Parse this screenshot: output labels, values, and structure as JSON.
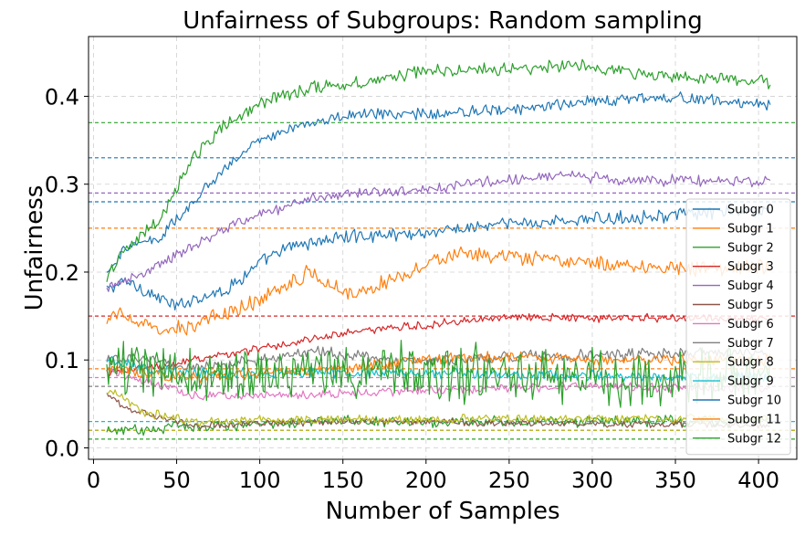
{
  "chart_data": {
    "type": "line",
    "title": "Unfairness of Subgroups: Random sampling",
    "xlabel": "Number of Samples",
    "ylabel": "Unfairness",
    "xlim": [
      -3,
      423
    ],
    "ylim": [
      -0.013,
      0.468
    ],
    "xticks": [
      "0",
      "50",
      "100",
      "150",
      "200",
      "250",
      "300",
      "350",
      "400"
    ],
    "xtick_values": [
      0,
      50,
      100,
      150,
      200,
      250,
      300,
      350,
      400
    ],
    "yticks": [
      "0.0",
      "0.1",
      "0.2",
      "0.3",
      "0.4"
    ],
    "ytick_values": [
      0.0,
      0.1,
      0.2,
      0.3,
      0.4
    ],
    "grid": true,
    "legend_position": "lower-right",
    "x_start": 8,
    "x_end": 407,
    "series": [
      {
        "name": "Subgr 0",
        "color": "#1f77b4",
        "noise": 0.006,
        "x": [
          8,
          20,
          50,
          60,
          80,
          100,
          120,
          150,
          200,
          250,
          300,
          350,
          407
        ],
        "y": [
          0.18,
          0.19,
          0.16,
          0.17,
          0.18,
          0.21,
          0.23,
          0.24,
          0.245,
          0.255,
          0.26,
          0.265,
          0.27
        ],
        "ref": 0.28
      },
      {
        "name": "Subgr 1",
        "color": "#ff7f0e",
        "noise": 0.007,
        "x": [
          8,
          15,
          40,
          60,
          90,
          130,
          150,
          160,
          200,
          220,
          260,
          300,
          350,
          407
        ],
        "y": [
          0.14,
          0.155,
          0.13,
          0.14,
          0.16,
          0.2,
          0.18,
          0.175,
          0.21,
          0.22,
          0.215,
          0.21,
          0.205,
          0.205
        ],
        "ref": 0.25
      },
      {
        "name": "Subgr 2",
        "color": "#2ca02c",
        "noise": 0.005,
        "x": [
          8,
          10,
          30,
          50,
          70,
          100,
          130,
          160,
          200,
          250,
          300,
          350,
          407
        ],
        "y": [
          0.015,
          0.02,
          0.02,
          0.025,
          0.025,
          0.028,
          0.03,
          0.03,
          0.03,
          0.03,
          0.03,
          0.03,
          0.03
        ],
        "ref": 0.01
      },
      {
        "name": "Subgr 3",
        "color": "#d62728",
        "noise": 0.004,
        "x": [
          8,
          30,
          60,
          90,
          120,
          150,
          200,
          250,
          300,
          350,
          407
        ],
        "y": [
          0.085,
          0.09,
          0.1,
          0.11,
          0.12,
          0.13,
          0.14,
          0.15,
          0.148,
          0.147,
          0.146
        ],
        "ref": 0.15
      },
      {
        "name": "Subgr 4",
        "color": "#9467bd",
        "noise": 0.005,
        "x": [
          8,
          20,
          40,
          60,
          80,
          100,
          130,
          160,
          200,
          250,
          280,
          320,
          407
        ],
        "y": [
          0.18,
          0.19,
          0.21,
          0.23,
          0.25,
          0.265,
          0.285,
          0.29,
          0.295,
          0.305,
          0.31,
          0.305,
          0.303
        ],
        "ref": 0.29
      },
      {
        "name": "Subgr 5",
        "color": "#8c564b",
        "noise": 0.003,
        "x": [
          8,
          20,
          40,
          60,
          100,
          150,
          200,
          250,
          300,
          350,
          407
        ],
        "y": [
          0.06,
          0.045,
          0.035,
          0.025,
          0.028,
          0.03,
          0.03,
          0.028,
          0.027,
          0.027,
          0.026
        ],
        "ref": 0.02
      },
      {
        "name": "Subgr 6",
        "color": "#e377c2",
        "noise": 0.004,
        "x": [
          8,
          30,
          60,
          100,
          150,
          200,
          250,
          300,
          350,
          407
        ],
        "y": [
          0.09,
          0.075,
          0.06,
          0.06,
          0.062,
          0.065,
          0.068,
          0.07,
          0.068,
          0.068
        ],
        "ref": 0.08
      },
      {
        "name": "Subgr 7",
        "color": "#7f7f7f",
        "noise": 0.005,
        "x": [
          8,
          30,
          60,
          100,
          140,
          180,
          220,
          260,
          300,
          350,
          407
        ],
        "y": [
          0.1,
          0.1,
          0.09,
          0.1,
          0.11,
          0.1,
          0.1,
          0.105,
          0.105,
          0.108,
          0.108
        ],
        "ref": 0.07
      },
      {
        "name": "Subgr 8",
        "color": "#bcbd22",
        "noise": 0.004,
        "x": [
          8,
          15,
          30,
          60,
          100,
          150,
          200,
          250,
          300,
          350,
          407
        ],
        "y": [
          0.065,
          0.06,
          0.04,
          0.03,
          0.032,
          0.032,
          0.033,
          0.033,
          0.033,
          0.033,
          0.033
        ],
        "ref": 0.02
      },
      {
        "name": "Subgr 9",
        "color": "#17becf",
        "noise": 0.005,
        "x": [
          8,
          30,
          60,
          100,
          150,
          200,
          250,
          300,
          350,
          407
        ],
        "y": [
          0.1,
          0.09,
          0.085,
          0.085,
          0.085,
          0.085,
          0.083,
          0.082,
          0.08,
          0.08
        ],
        "ref": 0.03
      },
      {
        "name": "Subgr 10",
        "color": "#1f77b4",
        "noise": 0.005,
        "x": [
          8,
          20,
          40,
          60,
          80,
          100,
          130,
          160,
          200,
          250,
          300,
          350,
          407
        ],
        "y": [
          0.2,
          0.23,
          0.24,
          0.28,
          0.32,
          0.35,
          0.37,
          0.38,
          0.38,
          0.385,
          0.395,
          0.4,
          0.39
        ],
        "ref": 0.33
      },
      {
        "name": "Subgr 11",
        "color": "#ff7f0e",
        "noise": 0.005,
        "x": [
          8,
          30,
          60,
          100,
          150,
          200,
          250,
          300,
          350,
          407
        ],
        "y": [
          0.09,
          0.085,
          0.08,
          0.085,
          0.09,
          0.1,
          0.105,
          0.1,
          0.1,
          0.1
        ],
        "ref": 0.09
      },
      {
        "name": "Subgr 12",
        "color": "#2ca02c",
        "noise": 0.006,
        "x": [
          8,
          20,
          40,
          60,
          80,
          100,
          130,
          160,
          200,
          250,
          290,
          330,
          407
        ],
        "y": [
          0.19,
          0.23,
          0.26,
          0.33,
          0.37,
          0.39,
          0.41,
          0.415,
          0.43,
          0.43,
          0.435,
          0.425,
          0.415
        ],
        "ref": 0.37
      },
      {
        "name": "",
        "color": "#2ca02c",
        "noise": 0.025,
        "x": [
          8,
          50,
          100,
          150,
          200,
          250,
          300,
          350,
          407
        ],
        "y": [
          0.09,
          0.085,
          0.085,
          0.085,
          0.085,
          0.085,
          0.08,
          0.08,
          0.08
        ],
        "ref": null
      }
    ]
  }
}
